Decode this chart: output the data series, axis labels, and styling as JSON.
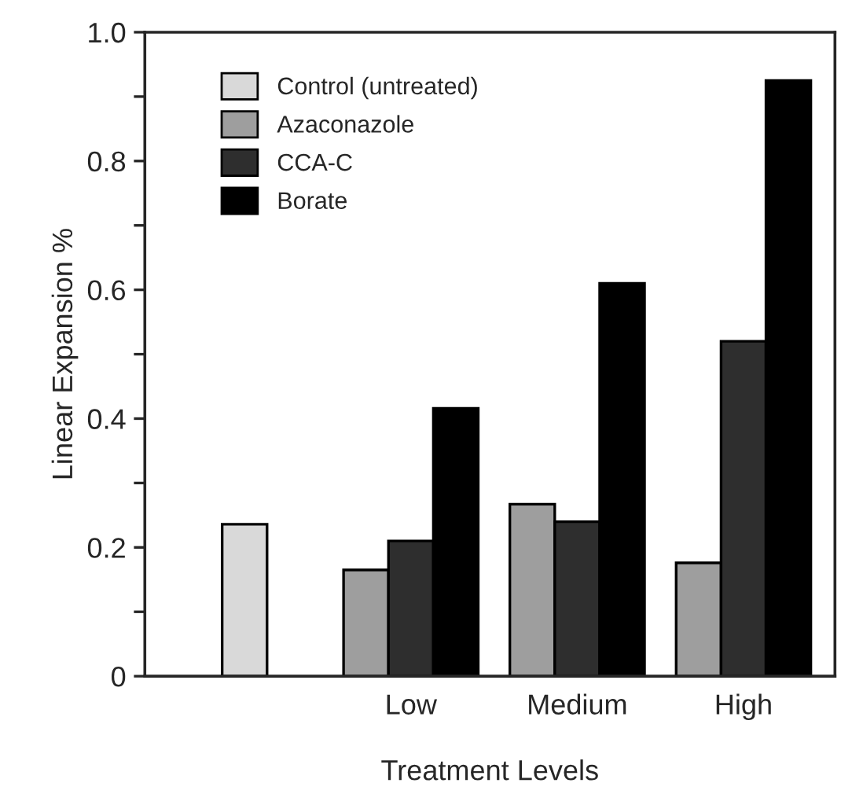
{
  "chart_data": {
    "type": "bar",
    "xlabel": "Treatment Levels",
    "ylabel": "Linear Expansion %",
    "categories": [
      null,
      "Low",
      "Medium",
      "High"
    ],
    "series": [
      {
        "name": "Control (untreated)",
        "color": "#d9d9d9",
        "values": [
          0.236,
          null,
          null,
          null
        ]
      },
      {
        "name": "Azaconazole",
        "color": "#9e9e9e",
        "values": [
          null,
          0.165,
          0.267,
          0.176
        ]
      },
      {
        "name": "CCA-C",
        "color": "#2e2e2e",
        "values": [
          null,
          0.21,
          0.24,
          0.52
        ]
      },
      {
        "name": "Borate",
        "color": "#000000",
        "values": [
          null,
          0.416,
          0.61,
          0.925
        ]
      }
    ],
    "ylim": [
      0,
      1.0
    ],
    "yticks": [
      {
        "value": 0,
        "label": "0"
      },
      {
        "value": 0.1,
        "label": null
      },
      0.2,
      {
        "value": 0.3,
        "label": null
      },
      0.4,
      {
        "value": 0.5,
        "label": null
      },
      0.6,
      {
        "value": 0.7,
        "label": null
      },
      0.8,
      {
        "value": 0.9,
        "label": null
      },
      {
        "value": 1.0,
        "label": "1.0"
      }
    ],
    "legend": "top left",
    "grid": false
  }
}
